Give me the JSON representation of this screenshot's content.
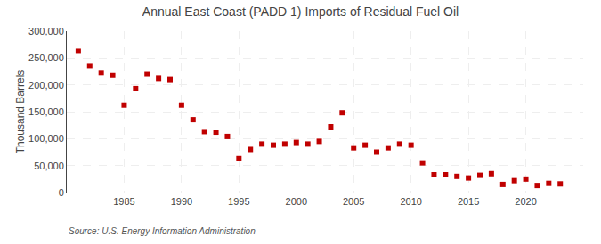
{
  "chart_data": {
    "type": "scatter",
    "title": "Annual East Coast (PADD 1) Imports of Residual Fuel Oil",
    "ylabel": "Thousand Barrels",
    "annotations": [
      "Source: U.S. Energy Information Administration"
    ],
    "x": [
      1981,
      1982,
      1983,
      1984,
      1985,
      1986,
      1987,
      1988,
      1989,
      1990,
      1991,
      1992,
      1993,
      1994,
      1995,
      1996,
      1997,
      1998,
      1999,
      2000,
      2001,
      2002,
      2003,
      2004,
      2005,
      2006,
      2007,
      2008,
      2009,
      2010,
      2011,
      2012,
      2013,
      2014,
      2015,
      2016,
      2017,
      2018,
      2019,
      2020,
      2021,
      2022,
      2023
    ],
    "values": [
      263000,
      235000,
      222000,
      218000,
      162000,
      193000,
      220000,
      212000,
      210000,
      162000,
      135000,
      113000,
      112000,
      104000,
      63000,
      80000,
      90000,
      88000,
      90000,
      93000,
      90000,
      95000,
      122000,
      148000,
      83000,
      88000,
      75000,
      83000,
      90000,
      88000,
      55000,
      33000,
      33000,
      30000,
      27000,
      32000,
      35000,
      15000,
      22000,
      25000,
      13000,
      17000,
      16000
    ],
    "color": "#c00000",
    "marker": "square",
    "xlim": [
      1980,
      2025
    ],
    "xticks": [
      1985,
      1990,
      1995,
      2000,
      2005,
      2010,
      2015,
      2020
    ],
    "ylim": [
      0,
      300000
    ],
    "yticks": [
      0,
      {
        "value": 50000,
        "label": "50,000"
      },
      {
        "value": 100000,
        "label": "100,000"
      },
      {
        "value": 150000,
        "label": "150,000"
      },
      {
        "value": 200000,
        "label": "200,000"
      },
      {
        "value": 250000,
        "label": "250,000"
      },
      {
        "value": 300000,
        "label": "300,000"
      }
    ],
    "grid": true
  }
}
